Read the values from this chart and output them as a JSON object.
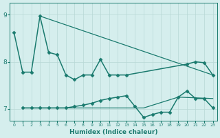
{
  "xlabel": "Humidex (Indice chaleur)",
  "xlim": [
    -0.5,
    23.5
  ],
  "ylim": [
    6.75,
    9.25
  ],
  "yticks": [
    7,
    8,
    9
  ],
  "xticks": [
    0,
    1,
    2,
    3,
    4,
    5,
    6,
    7,
    8,
    9,
    10,
    11,
    12,
    13,
    14,
    15,
    16,
    17,
    18,
    19,
    20,
    21,
    22,
    23
  ],
  "bg_color": "#d5eeed",
  "line_color": "#1a7a6e",
  "grid_color": "#b8d8d5",
  "series": [
    {
      "x": [
        0,
        1,
        2,
        3,
        4,
        5,
        6,
        7,
        8,
        9,
        10,
        11,
        12,
        13,
        20,
        21,
        22,
        23
      ],
      "y": [
        8.62,
        7.78,
        7.78,
        8.97,
        8.2,
        8.15,
        7.72,
        7.62,
        7.72,
        7.72,
        8.05,
        7.72,
        7.72,
        7.72,
        7.95,
        8.0,
        7.98,
        7.72
      ],
      "marker": "D",
      "markersize": 2.5,
      "linewidth": 1.1,
      "linestyle": "-"
    },
    {
      "x": [
        3,
        23
      ],
      "y": [
        8.97,
        7.72
      ],
      "marker": null,
      "markersize": 0,
      "linewidth": 0.9,
      "linestyle": "-"
    },
    {
      "x": [
        1,
        2,
        3,
        4,
        5,
        6,
        7,
        8,
        9,
        10,
        11,
        12,
        13,
        14,
        15,
        16,
        17,
        18,
        19,
        20,
        21,
        22,
        23
      ],
      "y": [
        7.02,
        7.02,
        7.02,
        7.02,
        7.02,
        7.02,
        7.05,
        7.08,
        7.12,
        7.18,
        7.22,
        7.25,
        7.28,
        7.05,
        6.82,
        6.88,
        6.93,
        6.93,
        7.25,
        7.38,
        7.22,
        7.22,
        7.02
      ],
      "marker": "D",
      "markersize": 2.5,
      "linewidth": 1.1,
      "linestyle": "-"
    },
    {
      "x": [
        1,
        14,
        15,
        19,
        23
      ],
      "y": [
        7.02,
        7.02,
        7.02,
        7.25,
        7.22
      ],
      "marker": null,
      "markersize": 0,
      "linewidth": 0.9,
      "linestyle": "-"
    }
  ]
}
